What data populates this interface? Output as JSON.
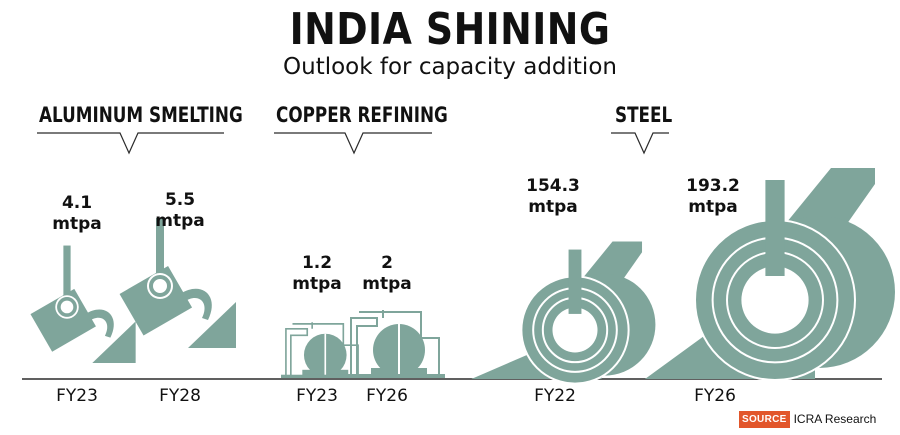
{
  "title": "INDIA SHINING",
  "subtitle": "Outlook for capacity addition",
  "source": {
    "tag": "SOURCE",
    "text": "ICRA Research"
  },
  "colors": {
    "fill": "#7fa59b",
    "ink": "#2b2b2b",
    "accent": "#e2562b"
  },
  "chart_data": {
    "type": "bar",
    "unit": "mtpa",
    "sections": [
      {
        "name": "ALUMINUM SMELTING",
        "points": [
          {
            "label": "FY23",
            "value": 4.1,
            "value_text": "4.1",
            "unit": "mtpa"
          },
          {
            "label": "FY28",
            "value": 5.5,
            "value_text": "5.5",
            "unit": "mtpa"
          }
        ]
      },
      {
        "name": "COPPER REFINING",
        "points": [
          {
            "label": "FY23",
            "value": 1.2,
            "value_text": "1.2",
            "unit": "mtpa"
          },
          {
            "label": "FY26",
            "value": 2,
            "value_text": "2",
            "unit": "mtpa"
          }
        ]
      },
      {
        "name": "STEEL",
        "points": [
          {
            "label": "FY22",
            "value": 154.3,
            "value_text": "154.3",
            "unit": "mtpa"
          },
          {
            "label": "FY26",
            "value": 193.2,
            "value_text": "193.2",
            "unit": "mtpa"
          }
        ]
      }
    ]
  }
}
